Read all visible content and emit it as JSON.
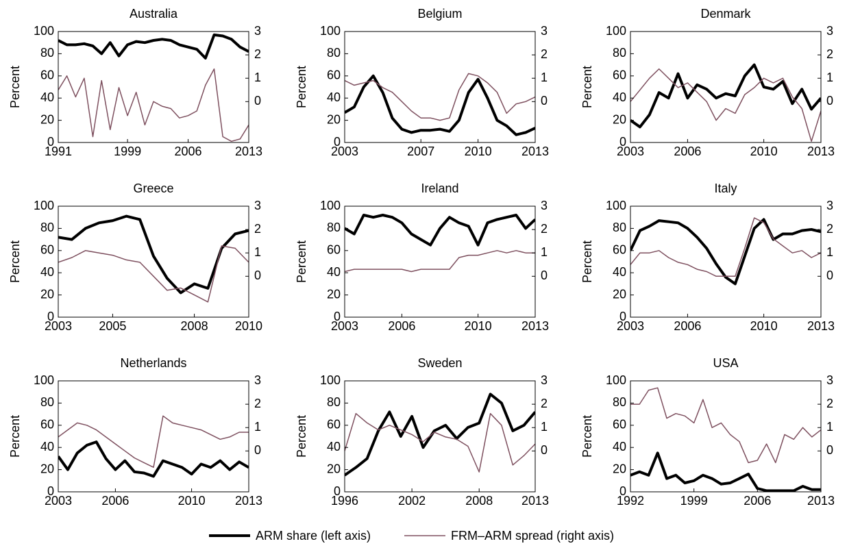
{
  "chart_data": [
    {
      "type": "line",
      "title": "Australia",
      "ylabel": "Percent",
      "x": [
        1991,
        1992,
        1993,
        1994,
        1995,
        1996,
        1997,
        1998,
        1999,
        2000,
        2001,
        2002,
        2003,
        2004,
        2005,
        2006,
        2007,
        2008,
        2009,
        2010,
        2011,
        2012,
        2013
      ],
      "xlim": [
        1991,
        2013
      ],
      "xticks": [
        1991,
        1999,
        2006,
        2013
      ],
      "ylim": [
        0,
        100
      ],
      "yticks": [
        0,
        20,
        40,
        60,
        80,
        100
      ],
      "y2lim": [
        -1.75,
        3
      ],
      "y2ticks": [
        0,
        1,
        2,
        3
      ],
      "series": [
        {
          "name": "ARM share (left axis)",
          "color": "#000000",
          "values": [
            92,
            88,
            88,
            89,
            87,
            80,
            90,
            78,
            88,
            91,
            90,
            92,
            93,
            92,
            88,
            86,
            84,
            76,
            97,
            96,
            93,
            86,
            82
          ]
        },
        {
          "name": "FRM–ARM spread (right axis)",
          "color": "#7d4f5e",
          "axis": "y2",
          "values": [
            0.5,
            1.1,
            0.2,
            1.0,
            -1.5,
            0.9,
            -1.2,
            0.6,
            -0.6,
            0.4,
            -1.0,
            0.0,
            -0.2,
            -0.3,
            -0.7,
            -0.6,
            -0.4,
            0.7,
            1.4,
            -1.5,
            -1.7,
            -1.6,
            -1.0
          ]
        }
      ]
    },
    {
      "type": "line",
      "title": "Belgium",
      "ylabel": "Percent",
      "x": [
        2003,
        2003.5,
        2004,
        2004.5,
        2005,
        2005.5,
        2006,
        2006.5,
        2007,
        2007.5,
        2008,
        2008.5,
        2009,
        2009.5,
        2010,
        2010.5,
        2011,
        2011.5,
        2012,
        2012.5,
        2013
      ],
      "xlim": [
        2003,
        2013
      ],
      "xticks": [
        2003,
        2007,
        2010,
        2013
      ],
      "ylim": [
        0,
        100
      ],
      "yticks": [
        0,
        20,
        40,
        60,
        80,
        100
      ],
      "y2lim": [
        -1.75,
        3
      ],
      "y2ticks": [
        0,
        1,
        2,
        3
      ],
      "series": [
        {
          "color": "#000000",
          "values": [
            27,
            32,
            50,
            60,
            45,
            22,
            12,
            9,
            11,
            11,
            12,
            10,
            20,
            45,
            57,
            40,
            20,
            15,
            7,
            9,
            13
          ]
        },
        {
          "color": "#7d4f5e",
          "axis": "y2",
          "values": [
            0.9,
            0.7,
            0.8,
            0.9,
            0.6,
            0.4,
            0.0,
            -0.4,
            -0.7,
            -0.7,
            -0.8,
            -0.7,
            0.5,
            1.2,
            1.1,
            0.8,
            0.4,
            -0.5,
            -0.1,
            0.0,
            0.2
          ]
        }
      ]
    },
    {
      "type": "line",
      "title": "Denmark",
      "ylabel": "Percent",
      "x": [
        2003,
        2003.5,
        2004,
        2004.5,
        2005,
        2005.5,
        2006,
        2006.5,
        2007,
        2007.5,
        2008,
        2008.5,
        2009,
        2009.5,
        2010,
        2010.5,
        2011,
        2011.5,
        2012,
        2012.5,
        2013
      ],
      "xlim": [
        2003,
        2013
      ],
      "xticks": [
        2003,
        2006,
        2010,
        2013
      ],
      "ylim": [
        0,
        100
      ],
      "yticks": [
        0,
        20,
        40,
        60,
        80,
        100
      ],
      "y2lim": [
        -1.75,
        3
      ],
      "y2ticks": [
        0,
        1,
        2,
        3
      ],
      "series": [
        {
          "color": "#000000",
          "values": [
            20,
            14,
            25,
            45,
            40,
            62,
            40,
            52,
            48,
            40,
            44,
            42,
            60,
            70,
            50,
            48,
            55,
            35,
            48,
            30,
            40
          ]
        },
        {
          "color": "#7d4f5e",
          "axis": "y2",
          "values": [
            0.0,
            0.5,
            1.0,
            1.4,
            1.0,
            0.6,
            0.8,
            0.4,
            0.0,
            -0.8,
            -0.3,
            -0.5,
            0.3,
            0.6,
            1.0,
            0.8,
            1.0,
            0.2,
            -0.3,
            -1.7,
            -0.4
          ]
        }
      ]
    },
    {
      "type": "line",
      "title": "Greece",
      "ylabel": "Percent",
      "x": [
        2003,
        2003.5,
        2004,
        2004.5,
        2005,
        2005.5,
        2006,
        2006.5,
        2007,
        2007.5,
        2008,
        2008.5,
        2009,
        2009.5,
        2010
      ],
      "xlim": [
        2003,
        2010
      ],
      "xticks": [
        2003,
        2005,
        2008,
        2010
      ],
      "ylim": [
        0,
        100
      ],
      "yticks": [
        0,
        20,
        40,
        60,
        80,
        100
      ],
      "y2lim": [
        -1.75,
        3
      ],
      "y2ticks": [
        0,
        1,
        2,
        3
      ],
      "series": [
        {
          "color": "#000000",
          "values": [
            72,
            70,
            80,
            85,
            87,
            91,
            88,
            55,
            35,
            22,
            30,
            26,
            62,
            75,
            78
          ]
        },
        {
          "color": "#7d4f5e",
          "axis": "y2",
          "values": [
            0.6,
            0.8,
            1.1,
            1.0,
            0.9,
            0.7,
            0.6,
            0.0,
            -0.6,
            -0.5,
            -0.8,
            -1.1,
            1.3,
            1.2,
            0.6
          ]
        }
      ]
    },
    {
      "type": "line",
      "title": "Ireland",
      "ylabel": "Percent",
      "x": [
        2003,
        2003.5,
        2004,
        2004.5,
        2005,
        2005.5,
        2006,
        2006.5,
        2007,
        2007.5,
        2008,
        2008.5,
        2009,
        2009.5,
        2010,
        2010.5,
        2011,
        2011.5,
        2012,
        2012.5,
        2013
      ],
      "xlim": [
        2003,
        2013
      ],
      "xticks": [
        2003,
        2006,
        2010,
        2013
      ],
      "ylim": [
        0,
        100
      ],
      "yticks": [
        0,
        20,
        40,
        60,
        80,
        100
      ],
      "y2lim": [
        -1.75,
        3
      ],
      "y2ticks": [
        0,
        1,
        2,
        3
      ],
      "series": [
        {
          "color": "#000000",
          "values": [
            80,
            75,
            92,
            90,
            92,
            90,
            85,
            75,
            70,
            65,
            80,
            90,
            85,
            82,
            65,
            85,
            88,
            90,
            92,
            80,
            88
          ]
        },
        {
          "color": "#7d4f5e",
          "axis": "y2",
          "values": [
            0.2,
            0.3,
            0.3,
            0.3,
            0.3,
            0.3,
            0.3,
            0.2,
            0.3,
            0.3,
            0.3,
            0.3,
            0.8,
            0.9,
            0.9,
            1.0,
            1.1,
            1.0,
            1.1,
            1.0,
            1.0
          ]
        }
      ]
    },
    {
      "type": "line",
      "title": "Italy",
      "ylabel": "Percent",
      "x": [
        2003,
        2003.5,
        2004,
        2004.5,
        2005,
        2005.5,
        2006,
        2006.5,
        2007,
        2007.5,
        2008,
        2008.5,
        2009,
        2009.5,
        2010,
        2010.5,
        2011,
        2011.5,
        2012,
        2012.5,
        2013
      ],
      "xlim": [
        2003,
        2013
      ],
      "xticks": [
        2003,
        2006,
        2010,
        2013
      ],
      "ylim": [
        0,
        100
      ],
      "yticks": [
        0,
        20,
        40,
        60,
        80,
        100
      ],
      "y2lim": [
        -1.75,
        3
      ],
      "y2ticks": [
        0,
        1,
        2,
        3
      ],
      "series": [
        {
          "color": "#000000",
          "values": [
            60,
            78,
            82,
            87,
            86,
            85,
            80,
            72,
            62,
            48,
            36,
            30,
            55,
            80,
            88,
            70,
            75,
            75,
            78,
            79,
            77
          ]
        },
        {
          "color": "#7d4f5e",
          "axis": "y2",
          "values": [
            0.5,
            1.0,
            1.0,
            1.1,
            0.8,
            0.6,
            0.5,
            0.3,
            0.2,
            0.0,
            0.0,
            0.0,
            1.2,
            2.5,
            2.3,
            1.6,
            1.3,
            1.0,
            1.1,
            0.8,
            1.0
          ]
        }
      ]
    },
    {
      "type": "line",
      "title": "Netherlands",
      "ylabel": "Percent",
      "x": [
        2003,
        2003.5,
        2004,
        2004.5,
        2005,
        2005.5,
        2006,
        2006.5,
        2007,
        2007.5,
        2008,
        2008.5,
        2009,
        2009.5,
        2010,
        2010.5,
        2011,
        2011.5,
        2012,
        2012.5,
        2013
      ],
      "xlim": [
        2003,
        2013
      ],
      "xticks": [
        2003,
        2006,
        2010,
        2013
      ],
      "ylim": [
        0,
        100
      ],
      "yticks": [
        0,
        20,
        40,
        60,
        80,
        100
      ],
      "y2lim": [
        -1.75,
        3
      ],
      "y2ticks": [
        0,
        1,
        2,
        3
      ],
      "series": [
        {
          "color": "#000000",
          "values": [
            32,
            20,
            35,
            42,
            45,
            30,
            20,
            28,
            18,
            17,
            14,
            28,
            25,
            22,
            16,
            25,
            22,
            28,
            20,
            27,
            22
          ]
        },
        {
          "color": "#7d4f5e",
          "axis": "y2",
          "values": [
            0.6,
            0.9,
            1.2,
            1.1,
            0.9,
            0.6,
            0.3,
            0.0,
            -0.3,
            -0.5,
            -0.7,
            1.5,
            1.2,
            1.1,
            1.0,
            0.9,
            0.7,
            0.5,
            0.6,
            0.8,
            0.8
          ]
        }
      ]
    },
    {
      "type": "line",
      "title": "Sweden",
      "ylabel": "Percent",
      "x": [
        1996,
        1997,
        1998,
        1999,
        2000,
        2001,
        2002,
        2003,
        2004,
        2005,
        2006,
        2007,
        2008,
        2009,
        2010,
        2011,
        2012,
        2013
      ],
      "xlim": [
        1996,
        2013
      ],
      "xticks": [
        1996,
        2002,
        2008,
        2013
      ],
      "ylim": [
        0,
        100
      ],
      "yticks": [
        0,
        20,
        40,
        60,
        80,
        100
      ],
      "y2lim": [
        -1.75,
        3
      ],
      "y2ticks": [
        0,
        1,
        2,
        3
      ],
      "series": [
        {
          "color": "#000000",
          "values": [
            15,
            22,
            30,
            55,
            72,
            50,
            68,
            40,
            55,
            60,
            48,
            58,
            62,
            88,
            80,
            55,
            60,
            72
          ]
        },
        {
          "color": "#7d4f5e",
          "axis": "y2",
          "values": [
            0.0,
            1.6,
            1.2,
            0.9,
            1.1,
            0.9,
            0.7,
            0.4,
            0.8,
            0.6,
            0.5,
            0.2,
            -0.9,
            1.6,
            1.1,
            -0.6,
            -0.2,
            0.3
          ]
        }
      ]
    },
    {
      "type": "line",
      "title": "USA",
      "ylabel": "Percent",
      "x": [
        1992,
        1993,
        1994,
        1995,
        1996,
        1997,
        1998,
        1999,
        2000,
        2001,
        2002,
        2003,
        2004,
        2005,
        2006,
        2007,
        2008,
        2009,
        2010,
        2011,
        2012,
        2013
      ],
      "xlim": [
        1992,
        2013
      ],
      "xticks": [
        1992,
        1999,
        2006,
        2013
      ],
      "ylim": [
        0,
        100
      ],
      "yticks": [
        0,
        20,
        40,
        60,
        80,
        100
      ],
      "y2lim": [
        -1.75,
        3
      ],
      "y2ticks": [
        0,
        1,
        2,
        3
      ],
      "series": [
        {
          "color": "#000000",
          "values": [
            15,
            18,
            15,
            35,
            12,
            15,
            8,
            10,
            15,
            12,
            7,
            8,
            12,
            16,
            3,
            1,
            1,
            1,
            1,
            5,
            2,
            2
          ]
        },
        {
          "color": "#7d4f5e",
          "axis": "y2",
          "values": [
            2.0,
            2.0,
            2.6,
            2.7,
            1.4,
            1.6,
            1.5,
            1.2,
            2.2,
            1.0,
            1.2,
            0.7,
            0.4,
            -0.5,
            -0.4,
            0.3,
            -0.5,
            0.7,
            0.5,
            1.0,
            0.6,
            0.9
          ]
        }
      ]
    }
  ]
}
